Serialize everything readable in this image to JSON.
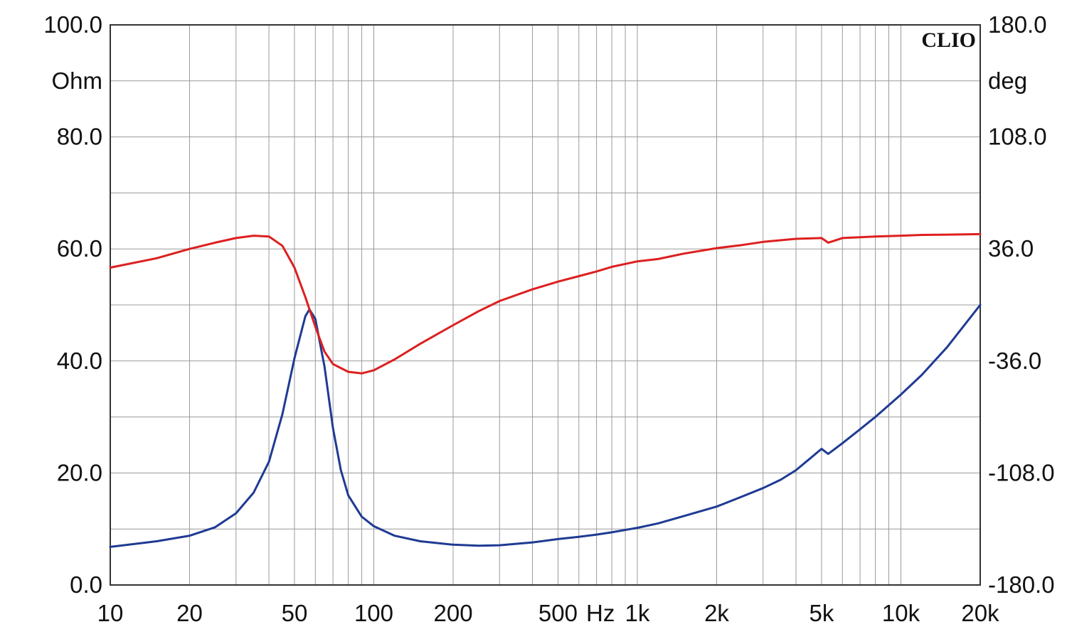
{
  "chart_data": {
    "type": "line",
    "brand": "CLIO",
    "x_axis": {
      "scale": "log",
      "range": [
        10,
        20000
      ],
      "tick_values": [
        10,
        20,
        50,
        100,
        200,
        500,
        1000,
        2000,
        5000,
        10000,
        20000
      ],
      "tick_labels": [
        "10",
        "20",
        "50",
        "100",
        "200",
        "500",
        "1k",
        "2k",
        "5k",
        "10k",
        "20k"
      ],
      "unit_label": "Hz"
    },
    "y_left": {
      "unit": "Ohm",
      "range": [
        0,
        100
      ],
      "tick_values": [
        0,
        20,
        40,
        60,
        80,
        100
      ],
      "tick_labels": [
        "0.0",
        "20.0",
        "40.0",
        "60.0",
        "80.0",
        "100.0"
      ]
    },
    "y_right": {
      "unit": "deg",
      "range": [
        -180,
        180
      ],
      "tick_values": [
        -180,
        -108,
        -36,
        36,
        108,
        180
      ],
      "tick_labels": [
        "-180.0",
        "-108.0",
        "-36.0",
        "36.0",
        "108.0",
        "180.0"
      ]
    },
    "grid": true,
    "series": [
      {
        "axis": "left",
        "color": "#1f3a93",
        "points": [
          [
            10,
            6.8
          ],
          [
            15,
            7.8
          ],
          [
            20,
            8.8
          ],
          [
            25,
            10.3
          ],
          [
            30,
            12.8
          ],
          [
            35,
            16.5
          ],
          [
            40,
            22
          ],
          [
            45,
            30.5
          ],
          [
            50,
            40.5
          ],
          [
            55,
            48
          ],
          [
            57,
            49.2
          ],
          [
            60,
            47.5
          ],
          [
            65,
            39
          ],
          [
            70,
            28
          ],
          [
            75,
            20.5
          ],
          [
            80,
            16
          ],
          [
            90,
            12.2
          ],
          [
            100,
            10.5
          ],
          [
            120,
            8.8
          ],
          [
            150,
            7.8
          ],
          [
            200,
            7.2
          ],
          [
            250,
            7.0
          ],
          [
            300,
            7.1
          ],
          [
            400,
            7.6
          ],
          [
            500,
            8.2
          ],
          [
            600,
            8.6
          ],
          [
            700,
            9.0
          ],
          [
            800,
            9.4
          ],
          [
            1000,
            10.2
          ],
          [
            1200,
            11.0
          ],
          [
            1500,
            12.3
          ],
          [
            2000,
            14.0
          ],
          [
            2500,
            15.8
          ],
          [
            3000,
            17.3
          ],
          [
            3500,
            18.8
          ],
          [
            4000,
            20.5
          ],
          [
            4500,
            22.5
          ],
          [
            5000,
            24.3
          ],
          [
            5300,
            23.4
          ],
          [
            6000,
            25.3
          ],
          [
            7000,
            27.8
          ],
          [
            8000,
            30.0
          ],
          [
            10000,
            34.0
          ],
          [
            12000,
            37.5
          ],
          [
            15000,
            42.5
          ],
          [
            20000,
            50.0
          ]
        ]
      },
      {
        "axis": "right",
        "color": "#dd1f1f",
        "points": [
          [
            10,
            24
          ],
          [
            15,
            30
          ],
          [
            20,
            36
          ],
          [
            25,
            40
          ],
          [
            30,
            43
          ],
          [
            35,
            44.5
          ],
          [
            40,
            44
          ],
          [
            45,
            38
          ],
          [
            50,
            24
          ],
          [
            55,
            5
          ],
          [
            60,
            -14
          ],
          [
            65,
            -30
          ],
          [
            70,
            -38
          ],
          [
            80,
            -43
          ],
          [
            90,
            -44
          ],
          [
            100,
            -42
          ],
          [
            120,
            -35
          ],
          [
            150,
            -25
          ],
          [
            200,
            -13
          ],
          [
            250,
            -4
          ],
          [
            300,
            2.5
          ],
          [
            400,
            10
          ],
          [
            500,
            15
          ],
          [
            600,
            18.5
          ],
          [
            700,
            21.5
          ],
          [
            800,
            24.5
          ],
          [
            1000,
            28
          ],
          [
            1200,
            29.5
          ],
          [
            1500,
            33
          ],
          [
            2000,
            36.5
          ],
          [
            2500,
            38.5
          ],
          [
            3000,
            40.5
          ],
          [
            4000,
            42.5
          ],
          [
            5000,
            43
          ],
          [
            5300,
            40
          ],
          [
            6000,
            43
          ],
          [
            7000,
            43.5
          ],
          [
            8000,
            44
          ],
          [
            10000,
            44.5
          ],
          [
            12000,
            45
          ],
          [
            15000,
            45.2
          ],
          [
            20000,
            45.5
          ]
        ]
      }
    ]
  }
}
